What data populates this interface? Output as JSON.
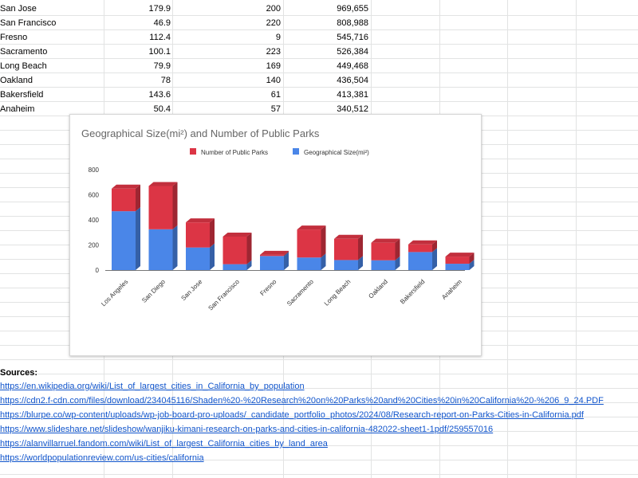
{
  "table": {
    "rows": [
      {
        "city": "San Jose",
        "size": "179.9",
        "parks": "200",
        "population": "969,655"
      },
      {
        "city": "San Francisco",
        "size": "46.9",
        "parks": "220",
        "population": "808,988"
      },
      {
        "city": "Fresno",
        "size": "112.4",
        "parks": "9",
        "population": "545,716"
      },
      {
        "city": "Sacramento",
        "size": "100.1",
        "parks": "223",
        "population": "526,384"
      },
      {
        "city": "Long Beach",
        "size": "79.9",
        "parks": "169",
        "population": "449,468"
      },
      {
        "city": "Oakland",
        "size": "78",
        "parks": "140",
        "population": "436,504"
      },
      {
        "city": "Bakersfield",
        "size": "143.6",
        "parks": "61",
        "population": "413,381"
      },
      {
        "city": "Anaheim",
        "size": "50.4",
        "parks": "57",
        "population": "340,512"
      }
    ]
  },
  "chart_data": {
    "type": "bar",
    "stacked": true,
    "style": "3d",
    "title": "Geographical Size(mi²) and Number of Public Parks",
    "categories": [
      "Los Angeles",
      "San Diego",
      "San Jose",
      "San Francisco",
      "Fresno",
      "Sacramento",
      "Long Beach",
      "Oakland",
      "Bakersfield",
      "Anaheim"
    ],
    "series": [
      {
        "name": "Geographical Size(mi²)",
        "color": "#4a86e8",
        "values": [
          469,
          325,
          179.9,
          46.9,
          112.4,
          100.1,
          79.9,
          78,
          143.6,
          50.4
        ]
      },
      {
        "name": "Number of Public Parks",
        "color": "#dc3545",
        "values": [
          180,
          345,
          200,
          220,
          9,
          223,
          169,
          140,
          61,
          57
        ]
      }
    ],
    "ylim": [
      0,
      800
    ],
    "yticks": [
      "0",
      "200",
      "400",
      "600",
      "800"
    ],
    "legend_position": "top",
    "grid": false
  },
  "sources": {
    "label": "Sources:",
    "links": [
      "https://en.wikipedia.org/wiki/List_of_largest_cities_in_California_by_population",
      "https://cdn2.f-cdn.com/files/download/234045116/Shaden%20-%20Research%20on%20Parks%20and%20Cities%20in%20California%20-%206_9_24.PDF",
      "https://blurpe.co/wp-content/uploads/wp-job-board-pro-uploads/_candidate_portfolio_photos/2024/08/Research-report-on-Parks-Cities-in-California.pdf",
      "https://www.slideshare.net/slideshow/wanjiku-kimani-research-on-parks-and-cities-in-california-482022-sheet1-1pdf/259557016",
      "https://alanvillarruel.fandom.com/wiki/List_of_largest_California_cities_by_land_area",
      "https://worldpopulationreview.com/us-cities/california"
    ]
  }
}
